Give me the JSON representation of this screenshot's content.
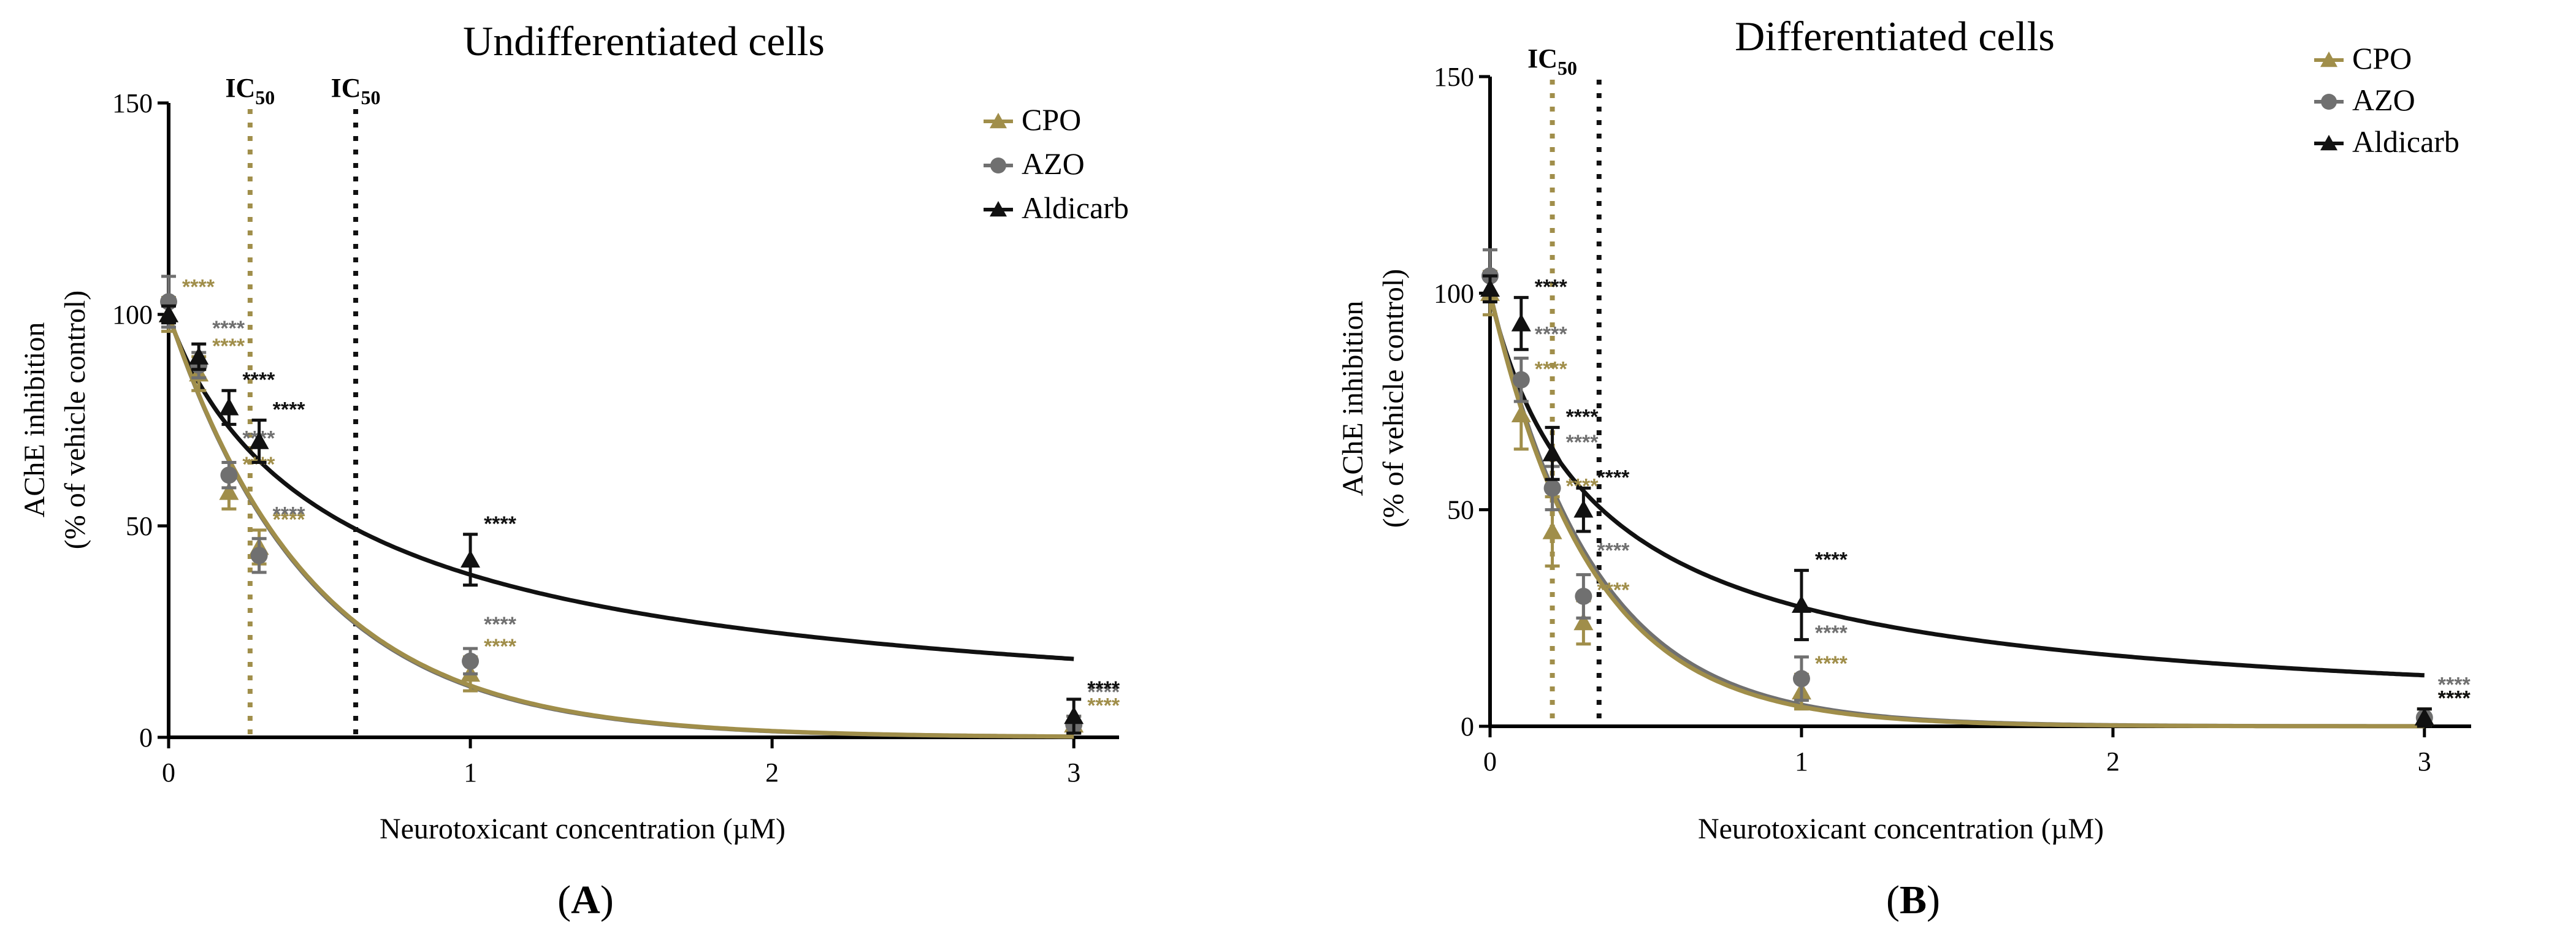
{
  "chart_data": [
    {
      "panel": "A",
      "type": "line",
      "title": "Undifferentiated cells",
      "xlabel": "Neurotoxicant concentration (µM)",
      "ylabel_line1": "AChE inhibition",
      "ylabel_line2": "(% of vehicle control)",
      "xlim": [
        0,
        3.15
      ],
      "ylim": [
        0,
        150
      ],
      "xticks": [
        0,
        1,
        2,
        3
      ],
      "yticks": [
        0,
        50,
        100,
        150
      ],
      "ic50_label": "IC",
      "ic50_sub": "50",
      "ic50_lines": [
        {
          "series": "CPO",
          "x": 0.27,
          "label": true
        },
        {
          "series": "Aldicarb",
          "x": 0.62,
          "label": true
        }
      ],
      "fit_k": {
        "CPO": 2.1,
        "AZO": 2.12,
        "Aldicarb": 0.72
      },
      "fit_aldicarb_type": "exp",
      "caption": "(A)",
      "series": [
        {
          "name": "CPO",
          "color": "#a08e4a",
          "marker": "triangle",
          "x": [
            0,
            0.1,
            0.2,
            0.3,
            1,
            3
          ],
          "y": [
            100,
            86,
            58,
            45,
            15,
            3
          ],
          "err": [
            4,
            4,
            4,
            4,
            4,
            2
          ],
          "stars": [
            "****",
            "****",
            "****",
            "****",
            "****",
            "****"
          ]
        },
        {
          "name": "AZO",
          "color": "#707070",
          "marker": "circle",
          "x": [
            0,
            0.1,
            0.2,
            0.3,
            1,
            3
          ],
          "y": [
            103,
            88,
            62,
            43,
            18,
            3
          ],
          "err": [
            6,
            3,
            3,
            4,
            3,
            2
          ],
          "stars": [
            "",
            "****",
            "****",
            "****",
            "****",
            "****"
          ]
        },
        {
          "name": "Aldicarb",
          "color": "#111111",
          "marker": "triangle",
          "x": [
            0,
            0.1,
            0.2,
            0.3,
            1,
            3
          ],
          "y": [
            100,
            90,
            78,
            70,
            42,
            5
          ],
          "err": [
            2,
            3,
            4,
            5,
            6,
            4
          ],
          "stars": [
            "",
            "",
            "****",
            "****",
            "****",
            "****"
          ]
        }
      ]
    },
    {
      "panel": "B",
      "type": "line",
      "title": "Differentiated cells",
      "xlabel": "Neurotoxicant concentration (µM)",
      "ylabel_line1": "AChE inhibition",
      "ylabel_line2": "(% of vehicle control)",
      "xlim": [
        0,
        3.15
      ],
      "ylim": [
        0,
        150
      ],
      "xticks": [
        0,
        1,
        2,
        3
      ],
      "yticks": [
        0,
        50,
        100,
        150
      ],
      "ic50_label": "IC",
      "ic50_sub": "50",
      "ic50_lines": [
        {
          "series": "CPO",
          "x": 0.2,
          "label": true
        },
        {
          "series": "Aldicarb",
          "x": 0.35,
          "label": false
        }
      ],
      "fit_k": {
        "CPO": 3.1,
        "AZO": 3.0,
        "Aldicarb": 0.0
      },
      "fit_aldicarb_type": "power",
      "caption": "(B)",
      "series": [
        {
          "name": "CPO",
          "color": "#a08e4a",
          "marker": "triangle",
          "x": [
            0,
            0.1,
            0.2,
            0.3,
            1,
            3
          ],
          "y": [
            100,
            72,
            45,
            24,
            8,
            2
          ],
          "err": [
            5,
            8,
            8,
            5,
            4,
            2
          ],
          "stars": [
            "",
            "****",
            "****",
            "****",
            "****",
            "****"
          ]
        },
        {
          "name": "AZO",
          "color": "#707070",
          "marker": "circle",
          "x": [
            0,
            0.1,
            0.2,
            0.3,
            1,
            3
          ],
          "y": [
            104,
            80,
            55,
            30,
            11,
            2
          ],
          "err": [
            6,
            5,
            5,
            5,
            5,
            2
          ],
          "stars": [
            "",
            "****",
            "****",
            "****",
            "****",
            "****"
          ]
        },
        {
          "name": "Aldicarb",
          "color": "#111111",
          "marker": "triangle",
          "x": [
            0,
            0.1,
            0.2,
            0.3,
            1,
            3
          ],
          "y": [
            101,
            93,
            63,
            50,
            28,
            2
          ],
          "err": [
            3,
            6,
            6,
            5,
            8,
            2
          ],
          "stars": [
            "",
            "****",
            "****",
            "****",
            "****",
            "****"
          ]
        }
      ]
    }
  ]
}
